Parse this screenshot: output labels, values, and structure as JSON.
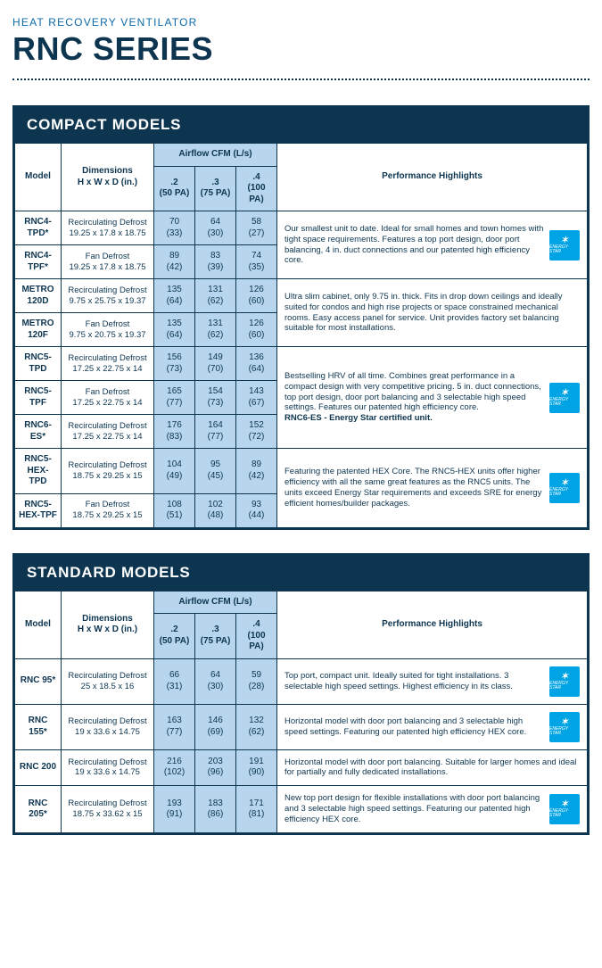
{
  "preTitle": "HEAT RECOVERY VENTILATOR",
  "mainTitle": "RNC SERIES",
  "headers": {
    "model": "Model",
    "dimensions": "Dimensions\nH x W x D (in.)",
    "airflow": "Airflow CFM (L/s)",
    "pa": [
      ".2\n(50 PA)",
      ".3\n(75 PA)",
      ".4\n(100 PA)"
    ],
    "highlights": "Performance Highlights"
  },
  "energyStarLabel": "ENERGY STAR",
  "sections": [
    {
      "title": "COMPACT MODELS",
      "groups": [
        {
          "highlight": "Our smallest unit to date. Ideal for small homes and town homes with tight space requirements. Features a top port design, door port balancing, 4 in. duct connections and our patented high efficiency core.",
          "energyStar": true,
          "rows": [
            {
              "model": "RNC4-TPD*",
              "dim": "Recirculating Defrost\n19.25 x 17.8 x 18.75",
              "v": [
                "70\n(33)",
                "64\n(30)",
                "58\n(27)"
              ]
            },
            {
              "model": "RNC4-TPF*",
              "dim": "Fan Defrost\n19.25 x 17.8 x 18.75",
              "v": [
                "89\n(42)",
                "83\n(39)",
                "74\n(35)"
              ]
            }
          ]
        },
        {
          "highlight": "Ultra slim cabinet, only 9.75 in. thick. Fits in drop down ceilings and ideally suited for condos and high rise projects or space constrained mechanical rooms. Easy access panel for service. Unit provides factory set balancing suitable for most installations.",
          "energyStar": false,
          "rows": [
            {
              "model": "METRO 120D",
              "dim": "Recirculating Defrost\n9.75 x 25.75 x 19.37",
              "v": [
                "135\n(64)",
                "131\n(62)",
                "126\n(60)"
              ]
            },
            {
              "model": "METRO 120F",
              "dim": "Fan Defrost\n9.75 x 20.75 x 19.37",
              "v": [
                "135\n(64)",
                "131\n(62)",
                "126\n(60)"
              ]
            }
          ]
        },
        {
          "highlight": "Bestselling HRV of all time. Combines great performance in a compact design with very competitive pricing. 5 in. duct connections, top port design, door port balancing and 3 selectable high speed settings. Features our patented high efficiency core.",
          "highlightBold": "RNC6-ES - Energy Star certified unit.",
          "energyStar": true,
          "rows": [
            {
              "model": "RNC5-TPD",
              "dim": "Recirculating Defrost\n17.25 x 22.75 x 14",
              "v": [
                "156\n(73)",
                "149\n(70)",
                "136\n(64)"
              ]
            },
            {
              "model": "RNC5-TPF",
              "dim": "Fan Defrost\n17.25 x 22.75 x 14",
              "v": [
                "165\n(77)",
                "154\n(73)",
                "143\n(67)"
              ]
            },
            {
              "model": "RNC6-ES*",
              "dim": "Recirculating Defrost\n17.25 x 22.75 x 14",
              "v": [
                "176\n(83)",
                "164\n(77)",
                "152\n(72)"
              ]
            }
          ]
        },
        {
          "highlight": "Featuring the patented HEX Core. The RNC5-HEX units offer higher efficiency with all the same great features as the RNC5 units. The units exceed Energy Star requirements and exceeds SRE for energy efficient homes/builder packages.",
          "energyStar": true,
          "rows": [
            {
              "model": "RNC5-HEX-TPD",
              "dim": "Recirculating Defrost\n18.75 x 29.25 x 15",
              "v": [
                "104\n(49)",
                "95\n(45)",
                "89\n(42)"
              ]
            },
            {
              "model": "RNC5-HEX-TPF",
              "dim": "Fan Defrost\n18.75 x 29.25 x 15",
              "v": [
                "108\n(51)",
                "102\n(48)",
                "93\n(44)"
              ]
            }
          ]
        }
      ]
    },
    {
      "title": "STANDARD MODELS",
      "groups": [
        {
          "highlight": "Top port, compact unit. Ideally suited for tight installations. 3 selectable high speed settings. Highest efficiency in its class.",
          "energyStar": true,
          "rows": [
            {
              "model": "RNC 95*",
              "dim": "Recirculating Defrost\n25 x 18.5 x 16",
              "v": [
                "66\n(31)",
                "64\n(30)",
                "59\n(28)"
              ]
            }
          ]
        },
        {
          "highlight": "Horizontal model with door port balancing and 3 selectable high speed settings. Featuring our patented high efficiency HEX core.",
          "energyStar": true,
          "rows": [
            {
              "model": "RNC 155*",
              "dim": "Recirculating Defrost\n19 x 33.6 x 14.75",
              "v": [
                "163\n(77)",
                "146\n(69)",
                "132\n(62)"
              ]
            }
          ]
        },
        {
          "highlight": "Horizontal model with door port balancing. Suitable for larger homes and ideal for partially and fully dedicated installations.",
          "energyStar": false,
          "rows": [
            {
              "model": "RNC 200",
              "dim": "Recirculating Defrost\n19 x 33.6 x 14.75",
              "v": [
                "216\n(102)",
                "203\n(96)",
                "191\n(90)"
              ]
            }
          ]
        },
        {
          "highlight": "New top port design for flexible installations with door port balancing and 3 selectable high speed settings. Featuring our patented high efficiency HEX core.",
          "energyStar": true,
          "rows": [
            {
              "model": "RNC 205*",
              "dim": "Recirculating Defrost\n18.75 x 33.62 x 15",
              "v": [
                "193\n(91)",
                "183\n(86)",
                "171\n(81)"
              ]
            }
          ]
        }
      ]
    }
  ]
}
